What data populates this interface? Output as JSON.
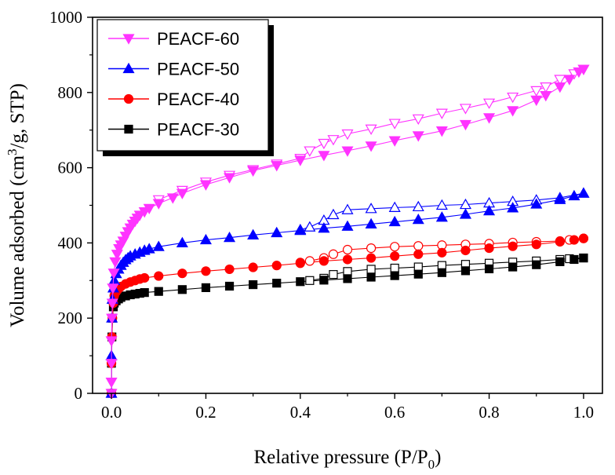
{
  "chart_data": {
    "type": "scatter",
    "xlabel": {
      "text": "Relative pressure (P/P",
      "sub": "0",
      "close": ")"
    },
    "ylabel": {
      "pre": "Volume adsorbed (cm",
      "sup": "3",
      "post": "/g, STP)"
    },
    "xlim": [
      -0.04,
      1.04
    ],
    "ylim": [
      0,
      1000
    ],
    "xticks": [
      0.0,
      0.2,
      0.4,
      0.6,
      0.8,
      1.0
    ],
    "xtick_labels": [
      "0.0",
      "0.2",
      "0.4",
      "0.6",
      "0.8",
      "1.0"
    ],
    "yticks": [
      0,
      200,
      400,
      600,
      800,
      1000
    ],
    "ytick_labels": [
      "0",
      "200",
      "400",
      "600",
      "800",
      "1000"
    ],
    "grid": false,
    "legend_position": "top-left",
    "series": [
      {
        "name": "PEACF-60",
        "color": "#ff33ff",
        "marker": "triangle-down",
        "adsorption": [
          [
            0.0,
            0
          ],
          [
            0.0,
            30
          ],
          [
            0.0,
            80
          ],
          [
            0.0,
            140
          ],
          [
            0.001,
            200
          ],
          [
            0.002,
            240
          ],
          [
            0.003,
            280
          ],
          [
            0.005,
            320
          ],
          [
            0.008,
            350
          ],
          [
            0.012,
            370
          ],
          [
            0.016,
            385
          ],
          [
            0.02,
            395
          ],
          [
            0.025,
            405
          ],
          [
            0.03,
            418
          ],
          [
            0.035,
            430
          ],
          [
            0.04,
            440
          ],
          [
            0.045,
            450
          ],
          [
            0.05,
            458
          ],
          [
            0.055,
            466
          ],
          [
            0.06,
            474
          ],
          [
            0.07,
            483
          ],
          [
            0.08,
            492
          ],
          [
            0.1,
            505
          ],
          [
            0.13,
            520
          ],
          [
            0.15,
            532
          ],
          [
            0.2,
            555
          ],
          [
            0.25,
            574
          ],
          [
            0.3,
            592
          ],
          [
            0.35,
            606
          ],
          [
            0.4,
            620
          ],
          [
            0.45,
            633
          ],
          [
            0.5,
            645
          ],
          [
            0.55,
            658
          ],
          [
            0.6,
            672
          ],
          [
            0.65,
            685
          ],
          [
            0.7,
            698
          ],
          [
            0.75,
            715
          ],
          [
            0.8,
            733
          ],
          [
            0.85,
            752
          ],
          [
            0.9,
            780
          ],
          [
            0.92,
            792
          ],
          [
            0.95,
            815
          ],
          [
            0.97,
            835
          ],
          [
            0.99,
            855
          ],
          [
            1.0,
            862
          ]
        ],
        "desorption": [
          [
            1.0,
            862
          ],
          [
            0.98,
            850
          ],
          [
            0.95,
            835
          ],
          [
            0.92,
            815
          ],
          [
            0.9,
            805
          ],
          [
            0.85,
            788
          ],
          [
            0.8,
            772
          ],
          [
            0.75,
            758
          ],
          [
            0.7,
            745
          ],
          [
            0.65,
            730
          ],
          [
            0.6,
            718
          ],
          [
            0.55,
            703
          ],
          [
            0.5,
            690
          ],
          [
            0.47,
            675
          ],
          [
            0.45,
            665
          ],
          [
            0.42,
            645
          ],
          [
            0.4,
            625
          ],
          [
            0.35,
            610
          ],
          [
            0.3,
            595
          ],
          [
            0.25,
            580
          ],
          [
            0.2,
            562
          ],
          [
            0.15,
            540
          ],
          [
            0.1,
            515
          ]
        ]
      },
      {
        "name": "PEACF-50",
        "color": "#0000ff",
        "marker": "triangle-up",
        "adsorption": [
          [
            0.0,
            0
          ],
          [
            0.0,
            100
          ],
          [
            0.001,
            200
          ],
          [
            0.002,
            250
          ],
          [
            0.004,
            280
          ],
          [
            0.006,
            300
          ],
          [
            0.01,
            318
          ],
          [
            0.015,
            330
          ],
          [
            0.02,
            340
          ],
          [
            0.025,
            348
          ],
          [
            0.03,
            355
          ],
          [
            0.035,
            360
          ],
          [
            0.04,
            365
          ],
          [
            0.05,
            370
          ],
          [
            0.06,
            375
          ],
          [
            0.07,
            380
          ],
          [
            0.08,
            384
          ],
          [
            0.1,
            390
          ],
          [
            0.15,
            400
          ],
          [
            0.2,
            408
          ],
          [
            0.25,
            414
          ],
          [
            0.3,
            421
          ],
          [
            0.35,
            427
          ],
          [
            0.4,
            433
          ],
          [
            0.45,
            439
          ],
          [
            0.5,
            444
          ],
          [
            0.55,
            450
          ],
          [
            0.6,
            456
          ],
          [
            0.65,
            462
          ],
          [
            0.7,
            468
          ],
          [
            0.75,
            476
          ],
          [
            0.8,
            485
          ],
          [
            0.85,
            493
          ],
          [
            0.9,
            503
          ],
          [
            0.95,
            515
          ],
          [
            0.98,
            525
          ],
          [
            1.0,
            532
          ]
        ],
        "desorption": [
          [
            1.0,
            532
          ],
          [
            0.95,
            520
          ],
          [
            0.9,
            514
          ],
          [
            0.85,
            510
          ],
          [
            0.8,
            506
          ],
          [
            0.75,
            502
          ],
          [
            0.7,
            500
          ],
          [
            0.65,
            496
          ],
          [
            0.6,
            494
          ],
          [
            0.55,
            491
          ],
          [
            0.5,
            488
          ],
          [
            0.47,
            475
          ],
          [
            0.45,
            460
          ],
          [
            0.42,
            442
          ],
          [
            0.4,
            435
          ]
        ]
      },
      {
        "name": "PEACF-40",
        "color": "#ff0000",
        "marker": "circle",
        "adsorption": [
          [
            0.0,
            0
          ],
          [
            0.0,
            80
          ],
          [
            0.001,
            150
          ],
          [
            0.002,
            200
          ],
          [
            0.004,
            240
          ],
          [
            0.006,
            260
          ],
          [
            0.01,
            270
          ],
          [
            0.015,
            278
          ],
          [
            0.02,
            284
          ],
          [
            0.03,
            291
          ],
          [
            0.04,
            296
          ],
          [
            0.05,
            300
          ],
          [
            0.06,
            304
          ],
          [
            0.07,
            307
          ],
          [
            0.1,
            312
          ],
          [
            0.15,
            319
          ],
          [
            0.2,
            325
          ],
          [
            0.25,
            330
          ],
          [
            0.3,
            335
          ],
          [
            0.35,
            340
          ],
          [
            0.4,
            346
          ],
          [
            0.45,
            352
          ],
          [
            0.5,
            356
          ],
          [
            0.55,
            360
          ],
          [
            0.6,
            365
          ],
          [
            0.65,
            370
          ],
          [
            0.7,
            374
          ],
          [
            0.75,
            380
          ],
          [
            0.8,
            386
          ],
          [
            0.85,
            391
          ],
          [
            0.9,
            396
          ],
          [
            0.95,
            403
          ],
          [
            0.98,
            408
          ],
          [
            1.0,
            412
          ]
        ],
        "desorption": [
          [
            1.0,
            412
          ],
          [
            0.97,
            408
          ],
          [
            0.95,
            405
          ],
          [
            0.9,
            403
          ],
          [
            0.85,
            401
          ],
          [
            0.8,
            398
          ],
          [
            0.75,
            396
          ],
          [
            0.7,
            394
          ],
          [
            0.65,
            392
          ],
          [
            0.6,
            390
          ],
          [
            0.55,
            386
          ],
          [
            0.5,
            382
          ],
          [
            0.47,
            370
          ],
          [
            0.45,
            360
          ],
          [
            0.42,
            352
          ],
          [
            0.4,
            348
          ]
        ]
      },
      {
        "name": "PEACF-30",
        "color": "#000000",
        "marker": "square",
        "adsorption": [
          [
            0.0,
            0
          ],
          [
            0.0,
            80
          ],
          [
            0.001,
            150
          ],
          [
            0.002,
            200
          ],
          [
            0.004,
            230
          ],
          [
            0.006,
            240
          ],
          [
            0.01,
            246
          ],
          [
            0.015,
            251
          ],
          [
            0.02,
            255
          ],
          [
            0.03,
            259
          ],
          [
            0.04,
            262
          ],
          [
            0.05,
            264
          ],
          [
            0.06,
            266
          ],
          [
            0.07,
            268
          ],
          [
            0.1,
            271
          ],
          [
            0.15,
            276
          ],
          [
            0.2,
            281
          ],
          [
            0.25,
            285
          ],
          [
            0.3,
            289
          ],
          [
            0.35,
            293
          ],
          [
            0.4,
            297
          ],
          [
            0.45,
            301
          ],
          [
            0.5,
            305
          ],
          [
            0.55,
            309
          ],
          [
            0.6,
            313
          ],
          [
            0.65,
            317
          ],
          [
            0.7,
            321
          ],
          [
            0.75,
            326
          ],
          [
            0.8,
            331
          ],
          [
            0.85,
            336
          ],
          [
            0.9,
            342
          ],
          [
            0.95,
            350
          ],
          [
            0.98,
            356
          ],
          [
            1.0,
            360
          ]
        ],
        "desorption": [
          [
            1.0,
            360
          ],
          [
            0.97,
            358
          ],
          [
            0.95,
            356
          ],
          [
            0.9,
            352
          ],
          [
            0.85,
            349
          ],
          [
            0.8,
            346
          ],
          [
            0.75,
            343
          ],
          [
            0.7,
            340
          ],
          [
            0.65,
            336
          ],
          [
            0.6,
            333
          ],
          [
            0.55,
            330
          ],
          [
            0.5,
            324
          ],
          [
            0.47,
            316
          ],
          [
            0.45,
            306
          ],
          [
            0.42,
            300
          ]
        ]
      }
    ]
  }
}
